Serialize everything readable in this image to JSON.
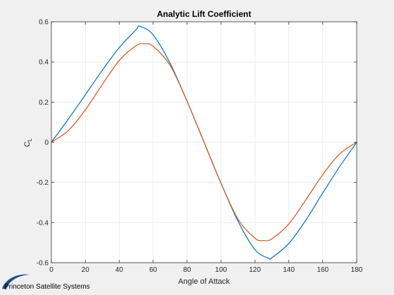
{
  "chart_data": {
    "type": "line",
    "title": "Analytic Lift Coefficient",
    "xlabel": "Angle of Attack",
    "ylabel": "C",
    "ylabel_subscript": "L",
    "xlim": [
      0,
      180
    ],
    "ylim": [
      -0.6,
      0.6
    ],
    "xticks": [
      0,
      20,
      40,
      60,
      80,
      100,
      120,
      140,
      160,
      180
    ],
    "yticks": [
      -0.6,
      -0.4,
      -0.2,
      0,
      0.2,
      0.4,
      0.6
    ],
    "ytick_labels": [
      "-0.6",
      "-0.4",
      "-0.2",
      "0",
      "0.2",
      "0.4",
      "0.6"
    ],
    "grid": true,
    "series": [
      {
        "color": "#0072bd",
        "x": [
          0,
          10,
          20,
          30,
          40,
          50,
          52,
          60,
          70,
          80,
          90,
          100,
          110,
          120,
          128,
          130,
          140,
          150,
          160,
          170,
          180
        ],
        "y": [
          0,
          0.115,
          0.236,
          0.358,
          0.471,
          0.561,
          0.578,
          0.535,
          0.393,
          0.204,
          0,
          -0.204,
          -0.393,
          -0.535,
          -0.578,
          -0.575,
          -0.504,
          -0.388,
          -0.252,
          -0.121,
          0
        ]
      },
      {
        "color": "#d95319",
        "x": [
          0,
          10,
          20,
          30,
          40,
          50,
          55,
          60,
          70,
          80,
          90,
          100,
          110,
          120,
          125,
          130,
          140,
          150,
          160,
          170,
          180
        ],
        "y": [
          0,
          0.058,
          0.161,
          0.287,
          0.407,
          0.481,
          0.49,
          0.478,
          0.383,
          0.204,
          0,
          -0.204,
          -0.383,
          -0.478,
          -0.49,
          -0.481,
          -0.407,
          -0.287,
          -0.161,
          -0.058,
          0
        ]
      }
    ]
  },
  "logo": {
    "text": "Princeton Satellite Systems",
    "swoosh_color": "#1f4f8f"
  }
}
